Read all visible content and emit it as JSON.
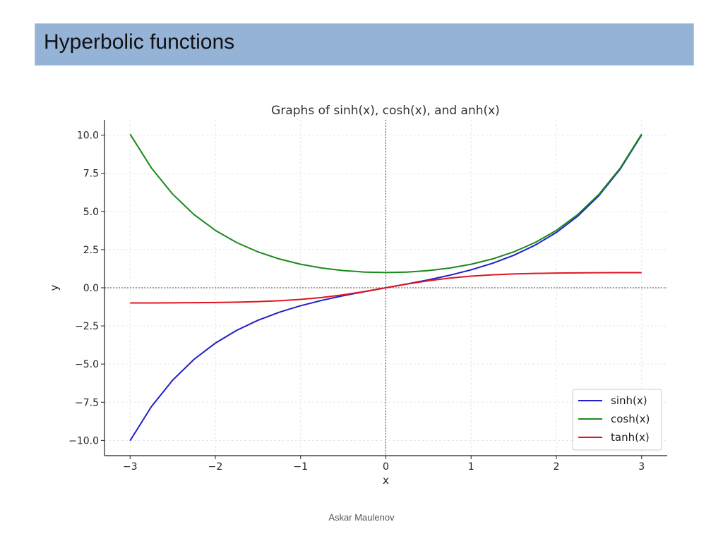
{
  "slide": {
    "title": "Hyperbolic functions",
    "footer": "Askar Maulenov"
  },
  "chart_data": {
    "type": "line",
    "title": "Graphs of sinh(x), cosh(x), and anh(x)",
    "xlabel": "x",
    "ylabel": "y",
    "xlim": [
      -3.3,
      3.3
    ],
    "ylim": [
      -11.0,
      11.0
    ],
    "xticks": [
      -3,
      -2,
      -1,
      0,
      1,
      2,
      3
    ],
    "xtick_labels": [
      "−3",
      "−2",
      "−1",
      "0",
      "1",
      "2",
      "3"
    ],
    "yticks": [
      -10,
      -7.5,
      -5,
      -2.5,
      0,
      2.5,
      5,
      7.5,
      10
    ],
    "ytick_labels": [
      "−10.0",
      "−7.5",
      "−5.0",
      "−2.5",
      "0.0",
      "2.5",
      "5.0",
      "7.5",
      "10.0"
    ],
    "grid": true,
    "legend_position": "bottom-right",
    "x": [
      -3.0,
      -2.75,
      -2.5,
      -2.25,
      -2.0,
      -1.75,
      -1.5,
      -1.25,
      -1.0,
      -0.75,
      -0.5,
      -0.25,
      0.0,
      0.25,
      0.5,
      0.75,
      1.0,
      1.25,
      1.5,
      1.75,
      2.0,
      2.25,
      2.5,
      2.75,
      3.0
    ],
    "series": [
      {
        "name": "sinh(x)",
        "color": "#1f1fcc",
        "values": [
          -10.018,
          -7.789,
          -6.05,
          -4.691,
          -3.627,
          -2.79,
          -2.129,
          -1.602,
          -1.175,
          -0.822,
          -0.521,
          -0.253,
          0.0,
          0.253,
          0.521,
          0.822,
          1.175,
          1.602,
          2.129,
          2.79,
          3.627,
          4.691,
          6.05,
          7.789,
          10.018
        ]
      },
      {
        "name": "cosh(x)",
        "color": "#1a8a1a",
        "values": [
          10.068,
          7.853,
          6.132,
          4.797,
          3.762,
          2.964,
          2.352,
          1.888,
          1.543,
          1.295,
          1.128,
          1.031,
          1.0,
          1.031,
          1.128,
          1.295,
          1.543,
          1.888,
          2.352,
          2.964,
          3.762,
          4.797,
          6.132,
          7.853,
          10.068
        ]
      },
      {
        "name": "tanh(x)",
        "color": "#e0151f",
        "values": [
          -0.995,
          -0.992,
          -0.987,
          -0.978,
          -0.964,
          -0.941,
          -0.905,
          -0.848,
          -0.762,
          -0.635,
          -0.462,
          -0.245,
          0.0,
          0.245,
          0.462,
          0.635,
          0.762,
          0.848,
          0.905,
          0.941,
          0.964,
          0.978,
          0.987,
          0.992,
          0.995
        ]
      }
    ],
    "legend_labels": [
      "sinh(x)",
      "cosh(x)",
      "tanh(x)"
    ]
  }
}
